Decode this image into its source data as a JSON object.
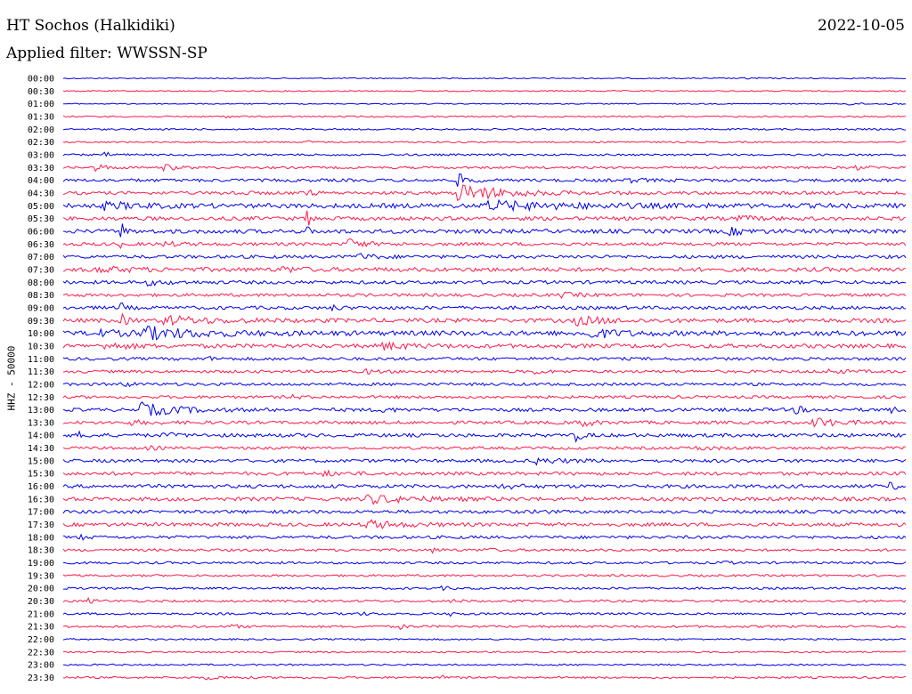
{
  "header": {
    "station": "HT Sochos (Halkidiki)",
    "date": "2022-10-05",
    "filter_label": "Applied filter: WWSSN-SP"
  },
  "chart_data": {
    "type": "line",
    "title": "HT Sochos (Halkidiki)",
    "date": "2022-10-05",
    "filter": "WWSSN-SP",
    "ylabel": "HHZ - 50000",
    "series_colors": [
      "#0000ee",
      "#ff1a4b"
    ],
    "color_pattern": "alternating blue/red per trace",
    "grid": false,
    "rows": [
      {
        "label": "00:00",
        "noise": 0.6,
        "events": [
          [
            0.81,
            0.9,
            0.015
          ],
          [
            0.88,
            0.5,
            0.01
          ]
        ]
      },
      {
        "label": "00:30",
        "noise": 0.7,
        "events": []
      },
      {
        "label": "01:00",
        "noise": 0.6,
        "events": [
          [
            0.93,
            1.4,
            0.015
          ],
          [
            0.98,
            0.8,
            0.01
          ]
        ]
      },
      {
        "label": "01:30",
        "noise": 0.8,
        "events": [
          [
            0.19,
            1.2,
            0.012
          ]
        ]
      },
      {
        "label": "02:00",
        "noise": 0.9,
        "events": []
      },
      {
        "label": "02:30",
        "noise": 0.9,
        "events": [
          [
            0.29,
            2.2,
            0.003
          ]
        ]
      },
      {
        "label": "03:00",
        "noise": 1.1,
        "events": [
          [
            0.05,
            2.0,
            0.012
          ]
        ]
      },
      {
        "label": "03:30",
        "noise": 1.3,
        "events": [
          [
            0.04,
            3.5,
            0.012
          ],
          [
            0.12,
            3.0,
            0.015
          ],
          [
            0.94,
            2.0,
            0.012
          ]
        ]
      },
      {
        "label": "04:00",
        "noise": 1.7,
        "events": [
          [
            0.47,
            6.5,
            0.01
          ],
          [
            0.67,
            2.0,
            0.02
          ]
        ]
      },
      {
        "label": "04:30",
        "noise": 1.8,
        "events": [
          [
            0.29,
            4.5,
            0.006
          ],
          [
            0.47,
            9.5,
            0.05
          ],
          [
            0.2,
            1.8,
            0.015
          ]
        ]
      },
      {
        "label": "05:00",
        "noise": 2.6,
        "events": [
          [
            0.5,
            4.5,
            0.09
          ],
          [
            0.05,
            3.0,
            0.04
          ]
        ]
      },
      {
        "label": "05:30",
        "noise": 2.1,
        "events": [
          [
            0.29,
            9.5,
            0.004
          ],
          [
            0.8,
            2.5,
            0.02
          ]
        ]
      },
      {
        "label": "06:00",
        "noise": 2.3,
        "events": [
          [
            0.07,
            8.0,
            0.003
          ],
          [
            0.79,
            3.5,
            0.02
          ],
          [
            0.29,
            4.0,
            0.003
          ]
        ]
      },
      {
        "label": "06:30",
        "noise": 1.8,
        "events": [
          [
            0.34,
            5.5,
            0.015
          ],
          [
            0.07,
            3.0,
            0.003
          ],
          [
            0.12,
            2.0,
            0.02
          ]
        ]
      },
      {
        "label": "07:00",
        "noise": 1.8,
        "events": [
          [
            0.35,
            3.0,
            0.02
          ]
        ]
      },
      {
        "label": "07:30",
        "noise": 2.3,
        "events": [
          [
            0.04,
            2.6,
            0.04
          ],
          [
            0.26,
            2.5,
            0.02
          ]
        ]
      },
      {
        "label": "08:00",
        "noise": 1.9,
        "events": [
          [
            0.1,
            2.5,
            0.02
          ]
        ]
      },
      {
        "label": "08:30",
        "noise": 1.7,
        "events": [
          [
            0.59,
            2.5,
            0.02
          ]
        ]
      },
      {
        "label": "09:00",
        "noise": 1.9,
        "events": [
          [
            0.07,
            4.0,
            0.005
          ],
          [
            0.32,
            2.0,
            0.01
          ]
        ]
      },
      {
        "label": "09:30",
        "noise": 2.3,
        "events": [
          [
            0.07,
            6.5,
            0.005
          ],
          [
            0.12,
            4.5,
            0.05
          ],
          [
            0.61,
            4.5,
            0.03
          ]
        ]
      },
      {
        "label": "10:00",
        "noise": 2.7,
        "events": [
          [
            0.09,
            6.5,
            0.06
          ],
          [
            0.62,
            5.5,
            0.03
          ],
          [
            0.03,
            3.0,
            0.04
          ]
        ]
      },
      {
        "label": "10:30",
        "noise": 2.3,
        "events": [
          [
            0.38,
            3.0,
            0.03
          ],
          [
            0.05,
            2.5,
            0.03
          ]
        ]
      },
      {
        "label": "11:00",
        "noise": 1.7,
        "events": [
          [
            0.17,
            2.0,
            0.01
          ]
        ]
      },
      {
        "label": "11:30",
        "noise": 1.6,
        "events": [
          [
            0.36,
            2.5,
            0.01
          ],
          [
            0.56,
            2.5,
            0.01
          ],
          [
            0.91,
            2.0,
            0.02
          ]
        ]
      },
      {
        "label": "12:00",
        "noise": 1.6,
        "events": [
          [
            0.07,
            2.5,
            0.01
          ]
        ]
      },
      {
        "label": "12:30",
        "noise": 1.6,
        "events": [
          [
            0.27,
            2.0,
            0.01
          ]
        ]
      },
      {
        "label": "13:00",
        "noise": 1.9,
        "events": [
          [
            0.09,
            7.5,
            0.04
          ],
          [
            0.38,
            2.5,
            0.01
          ],
          [
            0.87,
            3.5,
            0.01
          ],
          [
            0.98,
            3.0,
            0.01
          ]
        ]
      },
      {
        "label": "13:30",
        "noise": 1.8,
        "events": [
          [
            0.61,
            6.5,
            0.012
          ],
          [
            0.89,
            5.5,
            0.025
          ],
          [
            0.08,
            2.0,
            0.02
          ]
        ]
      },
      {
        "label": "14:00",
        "noise": 2.0,
        "events": [
          [
            0.61,
            6.0,
            0.006
          ],
          [
            0.02,
            2.5,
            0.01
          ],
          [
            0.12,
            2.5,
            0.01
          ]
        ]
      },
      {
        "label": "14:30",
        "noise": 1.6,
        "events": [
          [
            0.1,
            2.0,
            0.01
          ],
          [
            0.75,
            2.0,
            0.02
          ]
        ]
      },
      {
        "label": "15:00",
        "noise": 1.8,
        "events": [
          [
            0.56,
            3.0,
            0.03
          ]
        ]
      },
      {
        "label": "15:30",
        "noise": 1.9,
        "events": [
          [
            0.31,
            2.0,
            0.02
          ]
        ]
      },
      {
        "label": "16:00",
        "noise": 2.0,
        "events": [
          [
            0.52,
            3.0,
            0.015
          ],
          [
            0.98,
            3.0,
            0.015
          ]
        ]
      },
      {
        "label": "16:30",
        "noise": 2.1,
        "events": [
          [
            0.36,
            4.5,
            0.05
          ]
        ]
      },
      {
        "label": "17:00",
        "noise": 1.8,
        "events": [
          [
            0.56,
            2.0,
            0.01
          ]
        ]
      },
      {
        "label": "17:30",
        "noise": 2.0,
        "events": [
          [
            0.36,
            4.5,
            0.035
          ]
        ]
      },
      {
        "label": "18:00",
        "noise": 1.7,
        "events": [
          [
            0.02,
            2.0,
            0.01
          ]
        ]
      },
      {
        "label": "18:30",
        "noise": 1.4,
        "events": [
          [
            0.44,
            2.0,
            0.01
          ],
          [
            0.5,
            2.0,
            0.01
          ]
        ]
      },
      {
        "label": "19:00",
        "noise": 1.3,
        "events": [
          [
            0.78,
            2.0,
            0.01
          ]
        ]
      },
      {
        "label": "19:30",
        "noise": 1.2,
        "events": []
      },
      {
        "label": "20:00",
        "noise": 1.2,
        "events": [
          [
            0.45,
            1.6,
            0.01
          ]
        ]
      },
      {
        "label": "20:30",
        "noise": 1.3,
        "events": [
          [
            0.03,
            2.2,
            0.01
          ],
          [
            0.46,
            1.6,
            0.01
          ]
        ]
      },
      {
        "label": "21:00",
        "noise": 1.2,
        "events": [
          [
            0.35,
            1.6,
            0.01
          ],
          [
            0.46,
            2.0,
            0.01
          ]
        ]
      },
      {
        "label": "21:30",
        "noise": 1.3,
        "events": [
          [
            0.2,
            1.6,
            0.01
          ],
          [
            0.4,
            2.0,
            0.01
          ]
        ]
      },
      {
        "label": "22:00",
        "noise": 0.9,
        "events": []
      },
      {
        "label": "22:30",
        "noise": 0.9,
        "events": []
      },
      {
        "label": "23:00",
        "noise": 0.9,
        "events": []
      },
      {
        "label": "23:30",
        "noise": 1.1,
        "events": [
          [
            0.17,
            1.4,
            0.03
          ],
          [
            0.45,
            1.5,
            0.01
          ]
        ]
      }
    ]
  }
}
